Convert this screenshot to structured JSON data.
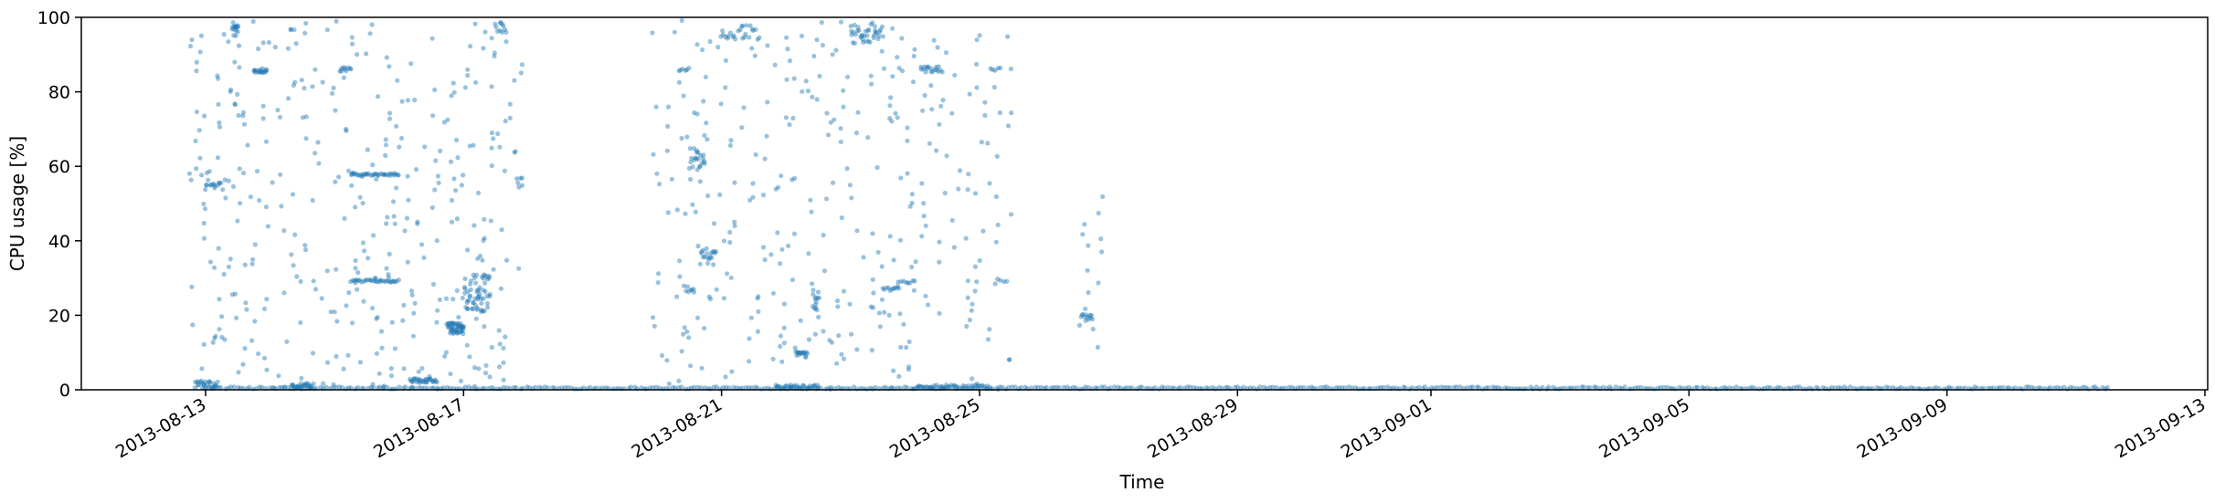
{
  "chart_data": {
    "type": "scatter",
    "title": "",
    "xlabel": "Time",
    "ylabel": "CPU usage [%]",
    "x_axis": {
      "kind": "date",
      "range": [
        "2013-08-11",
        "2013-09-13"
      ],
      "ticks": [
        "2013-08-13",
        "2013-08-17",
        "2013-08-21",
        "2013-08-25",
        "2013-08-29",
        "2013-09-01",
        "2013-09-05",
        "2013-09-09",
        "2013-09-13"
      ]
    },
    "y_axis": {
      "range": [
        0,
        100
      ],
      "ticks": [
        "0",
        "20",
        "40",
        "60",
        "80",
        "100"
      ]
    },
    "grid": false,
    "legend": "none",
    "marker_color": "#1f77b4",
    "series": [
      {
        "clusters": [
          {
            "start": "2013-08-13 00:00",
            "end": "2013-09-11 12:00",
            "y": 0.5,
            "n": 600,
            "spread": 0.3,
            "note": "continuous near-zero baseline"
          },
          {
            "start": "2013-08-12 20:00",
            "end": "2013-08-13 04:00",
            "y": 1.5,
            "n": 25,
            "spread": 1.0
          },
          {
            "start": "2013-08-13 10:00",
            "end": "2013-08-13 12:00",
            "y": 97.0,
            "n": 15,
            "spread": 2.0
          },
          {
            "start": "2013-08-13 18:00",
            "end": "2013-08-13 23:00",
            "y": 85.5,
            "n": 15,
            "spread": 0.5
          },
          {
            "start": "2013-08-13 00:00",
            "end": "2013-08-13 06:00",
            "y": 55.5,
            "n": 12,
            "spread": 1.0
          },
          {
            "start": "2013-08-14 08:00",
            "end": "2013-08-14 16:00",
            "y": 1.0,
            "n": 25,
            "spread": 0.8
          },
          {
            "start": "2013-08-15 02:00",
            "end": "2013-08-15 06:00",
            "y": 86.0,
            "n": 10,
            "spread": 0.5
          },
          {
            "start": "2013-08-15 06:00",
            "end": "2013-08-16 00:00",
            "y": 57.8,
            "n": 35,
            "spread": 0.3
          },
          {
            "start": "2013-08-15 06:00",
            "end": "2013-08-16 00:00",
            "y": 29.2,
            "n": 30,
            "spread": 0.3
          },
          {
            "start": "2013-08-16 04:00",
            "end": "2013-08-16 14:00",
            "y": 2.5,
            "n": 30,
            "spread": 0.6
          },
          {
            "start": "2013-08-16 18:00",
            "end": "2013-08-17 00:00",
            "y": 16.5,
            "n": 45,
            "spread": 1.5
          },
          {
            "start": "2013-08-17 00:00",
            "end": "2013-08-17 10:00",
            "y": 26.0,
            "n": 55,
            "spread": 5.0
          },
          {
            "start": "2013-08-17 12:00",
            "end": "2013-08-17 16:00",
            "y": 97.0,
            "n": 10,
            "spread": 2.0
          },
          {
            "start": "2013-08-17 20:00",
            "end": "2013-08-17 22:00",
            "y": 56.0,
            "n": 6,
            "spread": 2.0
          },
          {
            "start": "2013-08-20 08:00",
            "end": "2013-08-20 12:00",
            "y": 86.0,
            "n": 6,
            "spread": 0.5
          },
          {
            "start": "2013-08-20 12:00",
            "end": "2013-08-20 18:00",
            "y": 62.0,
            "n": 20,
            "spread": 3.0
          },
          {
            "start": "2013-08-20 16:00",
            "end": "2013-08-20 22:00",
            "y": 35.0,
            "n": 18,
            "spread": 3.0
          },
          {
            "start": "2013-08-20 10:00",
            "end": "2013-08-20 14:00",
            "y": 27.0,
            "n": 8,
            "spread": 1.0
          },
          {
            "start": "2013-08-21 00:00",
            "end": "2013-08-21 14:00",
            "y": 96.0,
            "n": 22,
            "spread": 2.0
          },
          {
            "start": "2013-08-21 20:00",
            "end": "2013-08-22 12:00",
            "y": 0.8,
            "n": 30,
            "spread": 0.5
          },
          {
            "start": "2013-08-22 04:00",
            "end": "2013-08-22 08:00",
            "y": 9.5,
            "n": 15,
            "spread": 1.0
          },
          {
            "start": "2013-08-22 10:00",
            "end": "2013-08-22 12:00",
            "y": 24.0,
            "n": 12,
            "spread": 3.0
          },
          {
            "start": "2013-08-23 00:00",
            "end": "2013-08-23 12:00",
            "y": 96.0,
            "n": 35,
            "spread": 3.0
          },
          {
            "start": "2013-08-23 12:00",
            "end": "2013-08-23 18:00",
            "y": 27.0,
            "n": 10,
            "spread": 0.4
          },
          {
            "start": "2013-08-23 18:00",
            "end": "2013-08-24 00:00",
            "y": 29.0,
            "n": 8,
            "spread": 0.4
          },
          {
            "start": "2013-08-24 02:00",
            "end": "2013-08-24 10:00",
            "y": 86.0,
            "n": 18,
            "spread": 0.8
          },
          {
            "start": "2013-08-24 00:00",
            "end": "2013-08-25 04:00",
            "y": 0.8,
            "n": 40,
            "spread": 0.5
          },
          {
            "start": "2013-08-25 04:00",
            "end": "2013-08-25 08:00",
            "y": 86.0,
            "n": 5,
            "spread": 0.5
          },
          {
            "start": "2013-08-25 06:00",
            "end": "2013-08-25 10:00",
            "y": 29.0,
            "n": 5,
            "spread": 1.0
          },
          {
            "start": "2013-08-26 14:00",
            "end": "2013-08-26 18:00",
            "y": 19.5,
            "n": 12,
            "spread": 1.0
          }
        ],
        "sparse_regions": [
          {
            "start": "2013-08-12 18:00",
            "end": "2013-08-17 22:00",
            "y_min": 0,
            "y_max": 100,
            "n": 380
          },
          {
            "start": "2013-08-19 22:00",
            "end": "2013-08-25 12:00",
            "y_min": 0,
            "y_max": 100,
            "n": 330
          },
          {
            "start": "2013-08-26 12:00",
            "end": "2013-08-26 22:00",
            "y_min": 0,
            "y_max": 56,
            "n": 14
          }
        ]
      }
    ]
  }
}
